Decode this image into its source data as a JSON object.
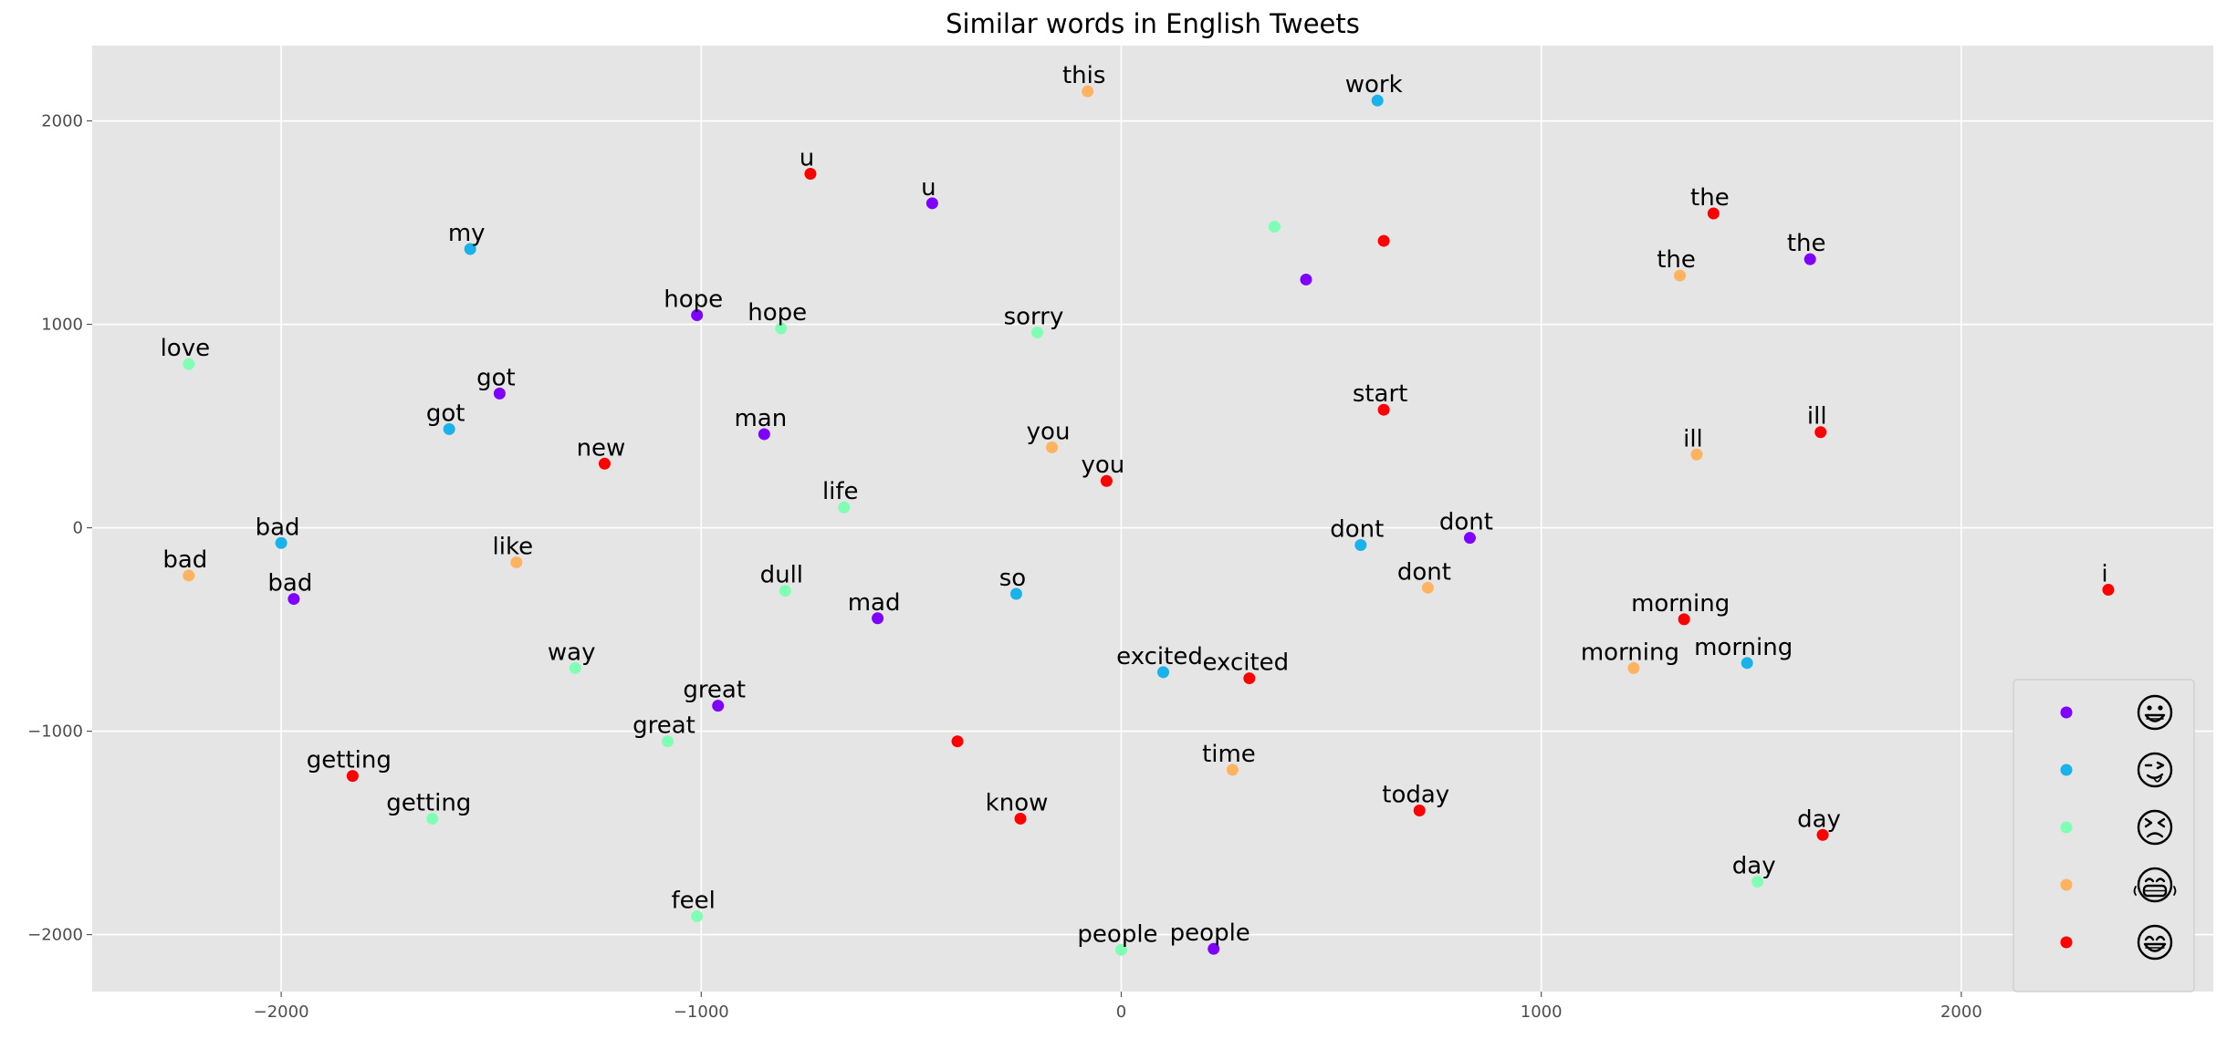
{
  "chart_data": {
    "type": "scatter",
    "title": "Similar words in English Tweets",
    "xlabel": "",
    "ylabel": "",
    "xlim": [
      -2450,
      2600
    ],
    "ylim": [
      -2280,
      2370
    ],
    "grid": true,
    "xticks": [
      -2000,
      -1000,
      0,
      1000,
      2000
    ],
    "yticks": [
      -2000,
      -1000,
      0,
      1000,
      2000
    ],
    "xtick_labels": [
      "−2000",
      "−1000",
      "0",
      "1000",
      "2000"
    ],
    "ytick_labels": [
      "−2000",
      "−1000",
      "0",
      "1000",
      "2000"
    ],
    "legend_position": "lower right",
    "series": [
      {
        "color": "#8000ff",
        "legend_icon": "grinning-face-icon",
        "points": [
          {
            "x": -450,
            "y": 1595,
            "label": "u"
          },
          {
            "x": -1010,
            "y": 1045,
            "label": "hope"
          },
          {
            "x": -1480,
            "y": 660,
            "label": "got"
          },
          {
            "x": -850,
            "y": 460,
            "label": "man"
          },
          {
            "x": -1970,
            "y": -350,
            "label": "bad"
          },
          {
            "x": -580,
            "y": -445,
            "label": "mad"
          },
          {
            "x": -960,
            "y": -875,
            "label": "great"
          },
          {
            "x": 220,
            "y": -2070,
            "label": "people"
          },
          {
            "x": 440,
            "y": 1220,
            "label": ""
          },
          {
            "x": 1640,
            "y": 1320,
            "label": "the"
          },
          {
            "x": 830,
            "y": -50,
            "label": "dont"
          }
        ]
      },
      {
        "color": "#1ab2ea",
        "legend_icon": "winking-face-with-tongue-icon",
        "points": [
          {
            "x": -1550,
            "y": 1370,
            "label": "my"
          },
          {
            "x": -1600,
            "y": 485,
            "label": "got"
          },
          {
            "x": -2000,
            "y": -75,
            "label": "bad"
          },
          {
            "x": -250,
            "y": -325,
            "label": "so"
          },
          {
            "x": 610,
            "y": 2100,
            "label": "work"
          },
          {
            "x": 570,
            "y": -85,
            "label": "dont"
          },
          {
            "x": 100,
            "y": -710,
            "label": "excited"
          },
          {
            "x": 1490,
            "y": -665,
            "label": "morning"
          }
        ]
      },
      {
        "color": "#80ffb4",
        "legend_icon": "persevering-face-icon",
        "points": [
          {
            "x": -2220,
            "y": 805,
            "label": "love"
          },
          {
            "x": -810,
            "y": 980,
            "label": "hope"
          },
          {
            "x": -660,
            "y": 100,
            "label": "life"
          },
          {
            "x": -800,
            "y": -310,
            "label": "dull"
          },
          {
            "x": -1300,
            "y": -690,
            "label": "way"
          },
          {
            "x": -1080,
            "y": -1050,
            "label": "great"
          },
          {
            "x": -1640,
            "y": -1430,
            "label": "getting"
          },
          {
            "x": -1010,
            "y": -1910,
            "label": "feel"
          },
          {
            "x": -200,
            "y": 960,
            "label": "sorry"
          },
          {
            "x": 0,
            "y": -2075,
            "label": "people"
          },
          {
            "x": 365,
            "y": 1480,
            "label": ""
          },
          {
            "x": 1515,
            "y": -1740,
            "label": "day"
          }
        ]
      },
      {
        "color": "#ffb360",
        "legend_icon": "grimacing-face-icon",
        "points": [
          {
            "x": -2220,
            "y": -235,
            "label": "bad"
          },
          {
            "x": -1440,
            "y": -170,
            "label": "like"
          },
          {
            "x": -80,
            "y": 2145,
            "label": "this"
          },
          {
            "x": -165,
            "y": 395,
            "label": "you"
          },
          {
            "x": 265,
            "y": -1190,
            "label": "time"
          },
          {
            "x": 730,
            "y": -295,
            "label": "dont"
          },
          {
            "x": 1330,
            "y": 1240,
            "label": "the"
          },
          {
            "x": 1370,
            "y": 360,
            "label": "ill"
          },
          {
            "x": 1220,
            "y": -690,
            "label": "morning"
          }
        ]
      },
      {
        "color": "#ff0000",
        "legend_icon": "grinning-face-with-smiling-eyes-icon",
        "points": [
          {
            "x": -740,
            "y": 1740,
            "label": "u"
          },
          {
            "x": -1230,
            "y": 315,
            "label": "new"
          },
          {
            "x": -1830,
            "y": -1220,
            "label": "getting"
          },
          {
            "x": -390,
            "y": -1050,
            "label": ""
          },
          {
            "x": -240,
            "y": -1430,
            "label": "know"
          },
          {
            "x": -35,
            "y": 230,
            "label": "you"
          },
          {
            "x": 305,
            "y": -740,
            "label": "excited"
          },
          {
            "x": 625,
            "y": 1410,
            "label": ""
          },
          {
            "x": 625,
            "y": 580,
            "label": "start"
          },
          {
            "x": 710,
            "y": -1390,
            "label": "today"
          },
          {
            "x": 1410,
            "y": 1545,
            "label": "the"
          },
          {
            "x": 1665,
            "y": 470,
            "label": "ill"
          },
          {
            "x": 1340,
            "y": -450,
            "label": "morning"
          },
          {
            "x": 1670,
            "y": -1510,
            "label": "day"
          },
          {
            "x": 2350,
            "y": -305,
            "label": "i"
          }
        ]
      }
    ]
  }
}
